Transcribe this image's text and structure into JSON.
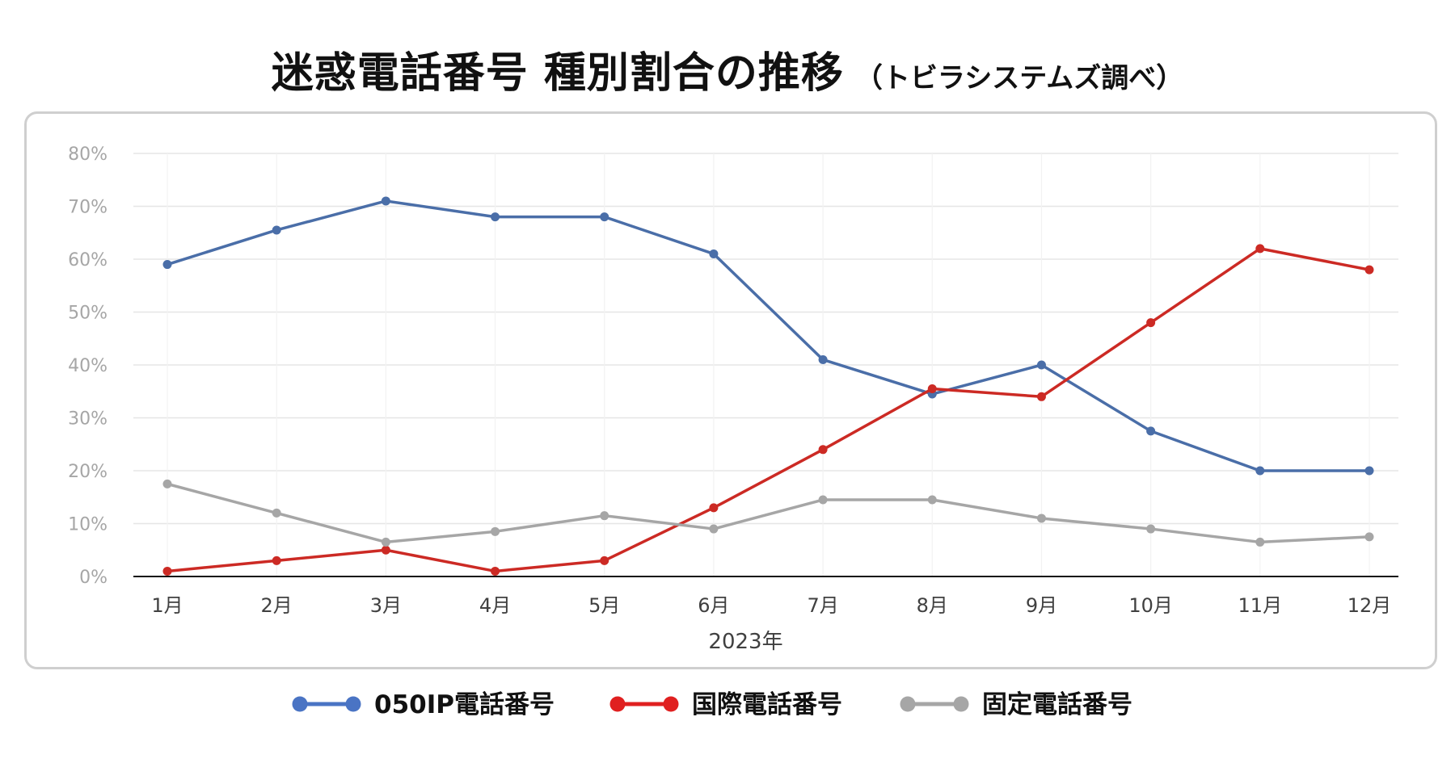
{
  "title": "迷惑電話番号 種別割合の推移",
  "subtitle": "（トビラシステムズ調べ）",
  "chart_data": {
    "type": "line",
    "title": "迷惑電話番号 種別割合の推移",
    "subtitle": "（トビラシステムズ調べ）",
    "xlabel": "2023年",
    "ylabel": "",
    "categories": [
      "1月",
      "2月",
      "3月",
      "4月",
      "5月",
      "6月",
      "7月",
      "8月",
      "9月",
      "10月",
      "11月",
      "12月"
    ],
    "ylim": [
      0,
      80
    ],
    "yticks": [
      0,
      10,
      20,
      30,
      40,
      50,
      60,
      70,
      80
    ],
    "ytick_labels": [
      "0%",
      "10%",
      "20%",
      "30%",
      "40%",
      "50%",
      "60%",
      "70%",
      "80%"
    ],
    "grid": true,
    "legend_position": "bottom",
    "series": [
      {
        "name": "050IP電話番号",
        "color": "#4a6ea8",
        "legend_color": "#4a74c4",
        "values": [
          59,
          65.5,
          71,
          68,
          68,
          61,
          41,
          34.5,
          40,
          27.5,
          20,
          20
        ]
      },
      {
        "name": "国際電話番号",
        "color": "#cc2a24",
        "legend_color": "#e02020",
        "values": [
          1,
          3,
          5,
          1,
          3,
          13,
          24,
          35.5,
          34,
          48,
          62,
          58
        ]
      },
      {
        "name": "固定電話番号",
        "color": "#a6a6a6",
        "legend_color": "#a6a6a6",
        "values": [
          17.5,
          12,
          6.5,
          8.5,
          11.5,
          9,
          14.5,
          14.5,
          11,
          9,
          6.5,
          7.5
        ]
      }
    ]
  }
}
